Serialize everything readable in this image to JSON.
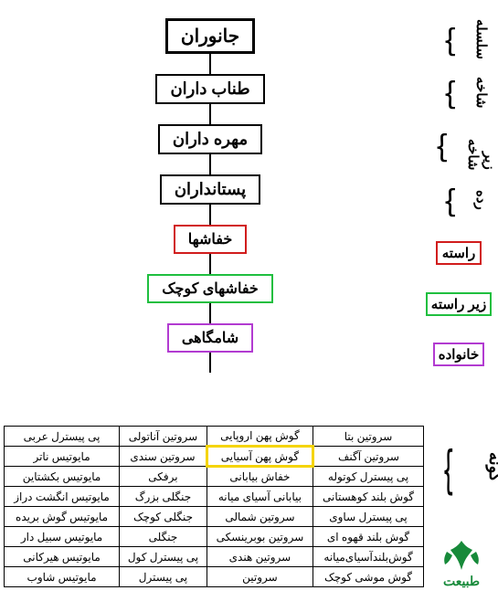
{
  "hierarchy": {
    "nodes": [
      {
        "label": "جانوران",
        "border_color": "#000000",
        "border_width": 3,
        "font_size": 20
      },
      {
        "label": "طناب داران",
        "border_color": "#000000",
        "border_width": 2,
        "font_size": 18
      },
      {
        "label": "مهره داران",
        "border_color": "#000000",
        "border_width": 2,
        "font_size": 18
      },
      {
        "label": "پستانداران",
        "border_color": "#000000",
        "border_width": 2,
        "font_size": 18
      },
      {
        "label": "خفاشها",
        "border_color": "#d11c1c",
        "border_width": 2,
        "font_size": 16
      },
      {
        "label": "خفاشهای کوچک",
        "border_color": "#1fbf3f",
        "border_width": 2,
        "font_size": 16
      },
      {
        "label": "شامگاهی",
        "border_color": "#b23bd1",
        "border_width": 2,
        "font_size": 16
      }
    ],
    "connector_color": "#000000"
  },
  "rank_labels": [
    {
      "text": "سلسله",
      "style": "brace"
    },
    {
      "text": "شاخه",
      "style": "brace"
    },
    {
      "text": "زیر شاخه",
      "style": "brace"
    },
    {
      "text": "رده",
      "style": "brace"
    },
    {
      "text": "راسته",
      "style": "box",
      "border_color": "#d11c1c"
    },
    {
      "text": "زیر راسته",
      "style": "box",
      "border_color": "#1fbf3f"
    },
    {
      "text": "خانواده",
      "style": "box",
      "border_color": "#b23bd1"
    }
  ],
  "species": {
    "side_label": "گونه",
    "highlight_color": "#f5d400",
    "rows": [
      [
        "سروتین بتا",
        "گوش پهن اروپایی",
        "سروتین آناتولی",
        "پی پیسترل عربی"
      ],
      [
        "سروتین آگنف",
        "گوش پهن آسیایی",
        "سروتین سندی",
        "مایوتیس ناتر"
      ],
      [
        "پی پیسترل کوتوله",
        "خفاش بیابانی",
        "برفکی",
        "مایوتیس بکشتاین"
      ],
      [
        "گوش بلند کوهستانی",
        "بیابانی آسیای میانه",
        "جنگلی بزرگ",
        "مایوتیس انگشت دراز"
      ],
      [
        "پی پیسترل ساوی",
        "سروتین شمالی",
        "جنگلی کوچک",
        "مایوتیس گوش بریده"
      ],
      [
        "گوش بلند قهوه ای",
        "سروتین بوبرینسکی",
        "جنگلی",
        "مایوتیس سبیل دار"
      ],
      [
        "گوش‌بلندآسیای‌میانه",
        "سروتین هندی",
        "پی پیسترل کول",
        "مایوتیس هیرکانی"
      ],
      [
        "گوش موشی کوچک",
        "سروتین",
        "پی پیسترل",
        "مایوتیس شاوب"
      ]
    ],
    "highlighted": {
      "row": 1,
      "col": 1
    }
  },
  "logo": {
    "text": "طبیعت",
    "color": "#178a3a"
  }
}
